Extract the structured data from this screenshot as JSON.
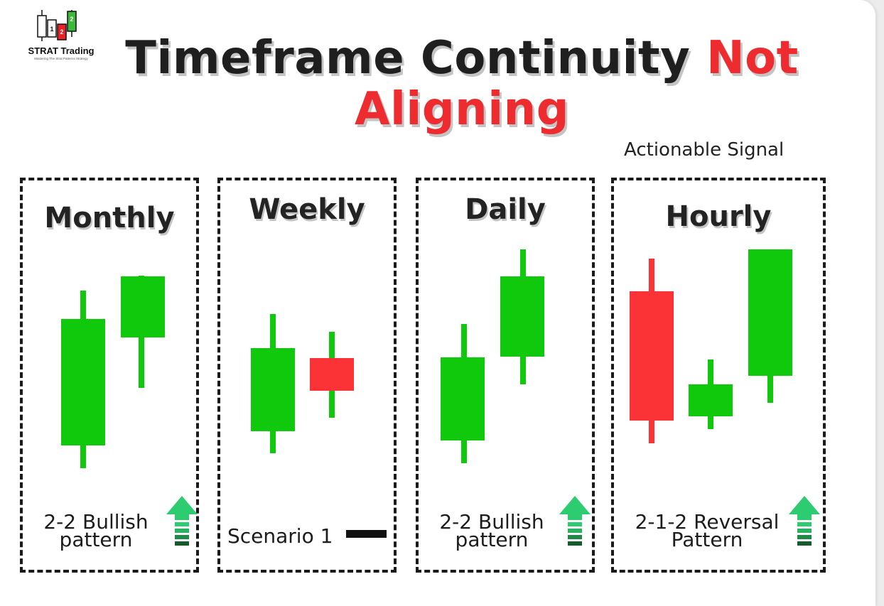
{
  "logo": {
    "name": "STRAT Trading",
    "tagline": "Mastering The Strat Patterns Strategy",
    "candle_labels": [
      "1",
      "2",
      "2"
    ]
  },
  "title": {
    "main": "Timeframe Continuity",
    "accent": "Not",
    "line2": "Aligning"
  },
  "signal_label": "Actionable Signal",
  "colors": {
    "green": "#10c90c",
    "red": "#fb3236",
    "arrow": "#2ecc71",
    "arrow_dark": "#165a2e",
    "title_red": "#ee2b2e"
  },
  "panels": [
    {
      "title": "Monthly",
      "caption_line1": "2-2 Bullish",
      "caption_line2": "pattern",
      "indicator": "up-arrow-icon"
    },
    {
      "title": "Weekly",
      "caption_line1": "Scenario 1",
      "caption_line2": "",
      "indicator": "dash-icon"
    },
    {
      "title": "Daily",
      "caption_line1": "2-2 Bullish",
      "caption_line2": "pattern",
      "indicator": "up-arrow-icon"
    },
    {
      "title": "Hourly",
      "caption_line1": "2-1-2 Reversal",
      "caption_line2": "Pattern",
      "indicator": "up-arrow-icon"
    }
  ]
}
